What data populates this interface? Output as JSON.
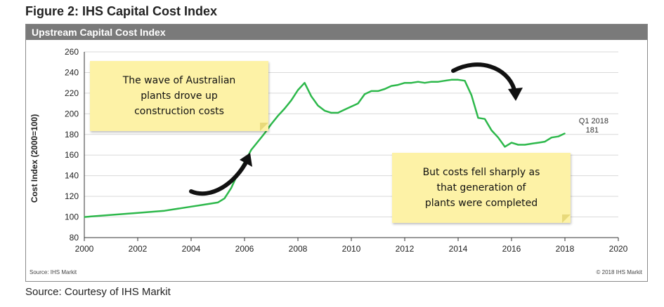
{
  "figure_title": "Figure 2: IHS Capital Cost Index",
  "panel_title": "Upstream Capital Cost Index",
  "source_inner": "Source: IHS Markit",
  "copyright": "© 2018 IHS Markit",
  "source_bottom": "Source: Courtesy of IHS Markit",
  "annotations": {
    "note_left": "The wave of Australian\nplants drove up\nconstruction costs",
    "note_right": "But costs fell sharply as\nthat generation of\nplants were completed",
    "endpoint_label_1": "Q1 2018",
    "endpoint_label_2": "181"
  },
  "colors": {
    "line": "#2db84b",
    "grid": "#d9d9d9",
    "note_bg": "#fdf2a6",
    "header_bg": "#7a7a7a"
  },
  "chart_data": {
    "type": "line",
    "title": "Upstream Capital Cost Index",
    "xlabel": "",
    "ylabel": "Cost Index (2000=100)",
    "xlim": [
      2000,
      2020
    ],
    "ylim": [
      80,
      260
    ],
    "xticks": [
      2000,
      2002,
      2004,
      2006,
      2008,
      2010,
      2012,
      2014,
      2016,
      2018,
      2020
    ],
    "yticks": [
      80,
      100,
      120,
      140,
      160,
      180,
      200,
      220,
      240,
      260
    ],
    "grid": "horizontal",
    "series": [
      {
        "x": [
          2000,
          2001,
          2002,
          2003,
          2004,
          2004.5,
          2005,
          2005.25,
          2005.5,
          2005.75,
          2006,
          2006.25,
          2006.5,
          2006.75,
          2007,
          2007.25,
          2007.5,
          2007.75,
          2008,
          2008.25,
          2008.5,
          2008.75,
          2009,
          2009.25,
          2009.5,
          2009.75,
          2010,
          2010.25,
          2010.5,
          2010.75,
          2011,
          2011.25,
          2011.5,
          2011.75,
          2012,
          2012.25,
          2012.5,
          2012.75,
          2013,
          2013.25,
          2013.5,
          2013.75,
          2014,
          2014.25,
          2014.5,
          2014.75,
          2015,
          2015.25,
          2015.5,
          2015.75,
          2016,
          2016.25,
          2016.5,
          2016.75,
          2017,
          2017.25,
          2017.5,
          2017.75,
          2018
        ],
        "values": [
          100,
          102,
          104,
          106,
          110,
          112,
          114,
          118,
          128,
          142,
          153,
          165,
          173,
          181,
          190,
          198,
          205,
          213,
          223,
          230,
          217,
          208,
          203,
          201,
          201,
          204,
          207,
          210,
          219,
          222,
          222,
          224,
          227,
          228,
          230,
          230,
          231,
          230,
          231,
          231,
          232,
          233,
          233,
          232,
          218,
          196,
          195,
          184,
          177,
          168,
          172,
          170,
          170,
          171,
          172,
          173,
          177,
          178,
          181
        ]
      }
    ]
  }
}
